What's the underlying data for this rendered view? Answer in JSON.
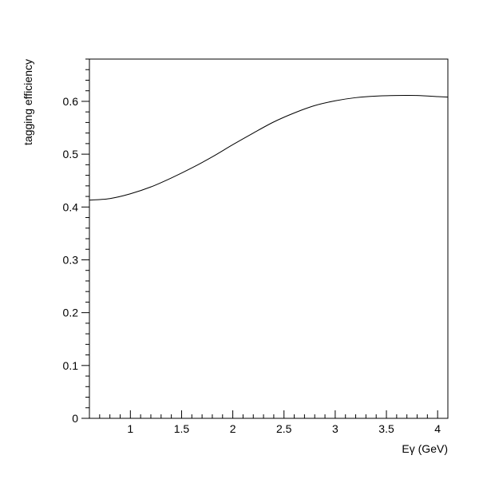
{
  "chart_data": {
    "type": "line",
    "title": "",
    "xlabel": "Eγ (GeV)",
    "ylabel": "tagging efficiency",
    "xlim": [
      0.6,
      4.1
    ],
    "ylim": [
      0,
      0.68
    ],
    "xticks": [
      1,
      1.5,
      2,
      2.5,
      3,
      3.5,
      4
    ],
    "xtick_labels": [
      "1",
      "1.5",
      "2",
      "2.5",
      "3",
      "3.5",
      "4"
    ],
    "yticks": [
      0,
      0.1,
      0.2,
      0.3,
      0.4,
      0.5,
      0.6
    ],
    "ytick_labels": [
      "0",
      "0.1",
      "0.2",
      "0.3",
      "0.4",
      "0.5",
      "0.6"
    ],
    "grid": false,
    "legend": "none",
    "series": [
      {
        "x": [
          0.6,
          0.8,
          1.0,
          1.2,
          1.4,
          1.6,
          1.8,
          2.0,
          2.2,
          2.4,
          2.6,
          2.8,
          3.0,
          3.2,
          3.4,
          3.6,
          3.8,
          4.0,
          4.1
        ],
        "y": [
          0.413,
          0.416,
          0.425,
          0.438,
          0.455,
          0.474,
          0.495,
          0.518,
          0.54,
          0.561,
          0.578,
          0.592,
          0.601,
          0.607,
          0.61,
          0.611,
          0.611,
          0.609,
          0.608
        ],
        "color": "#000000"
      }
    ]
  }
}
